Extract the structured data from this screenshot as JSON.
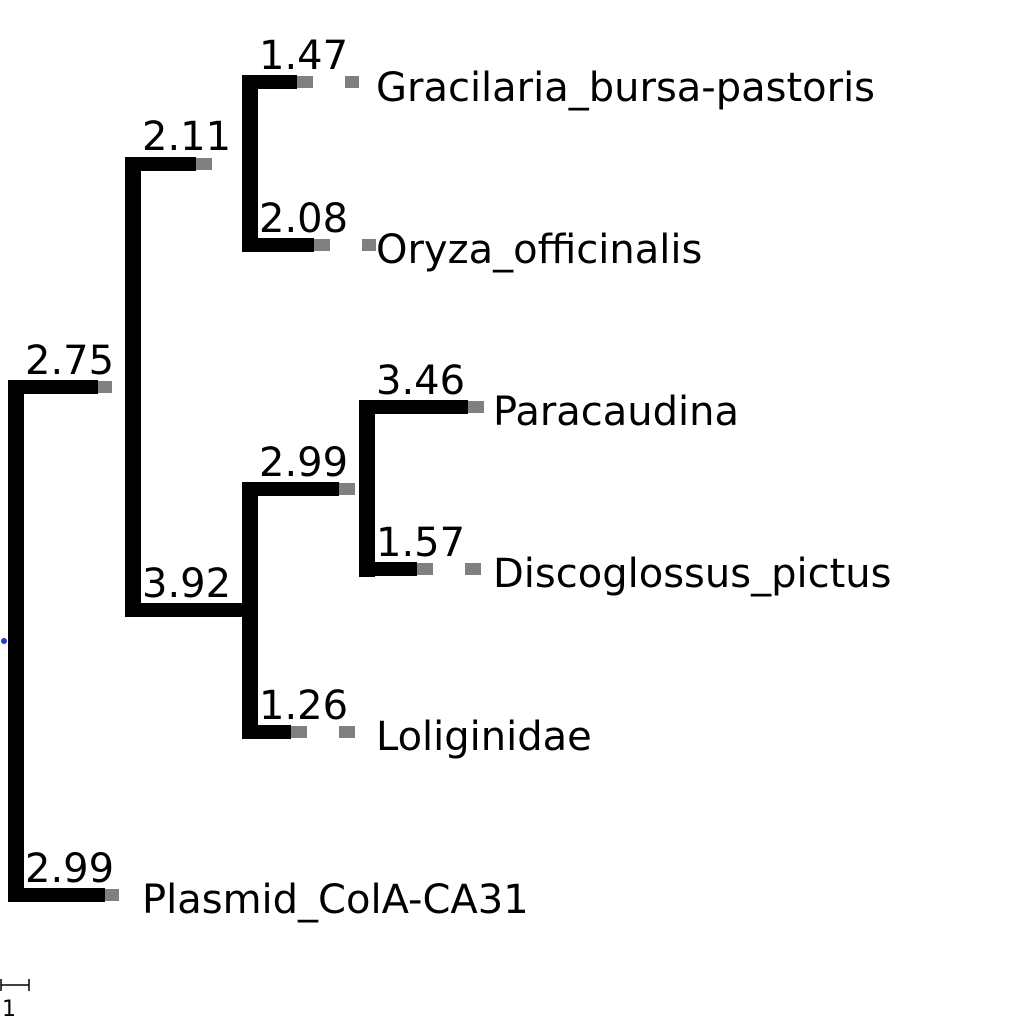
{
  "colors": {
    "background": "#ffffff",
    "branch": "#000000",
    "leader": "#808080",
    "root_marker": "#1f3fbf",
    "text": "#000000"
  },
  "scale_bar": {
    "label": "1"
  },
  "branch_labels": [
    {
      "id": "gracilaria",
      "value": "1.47"
    },
    {
      "id": "cladeA",
      "value": "2.11"
    },
    {
      "id": "oryza",
      "value": "2.08"
    },
    {
      "id": "ingroup",
      "value": "2.75"
    },
    {
      "id": "paracaudina",
      "value": "3.46"
    },
    {
      "id": "cladeD",
      "value": "2.99"
    },
    {
      "id": "discoglossus",
      "value": "1.57"
    },
    {
      "id": "cladeB",
      "value": "3.92"
    },
    {
      "id": "loliginidae",
      "value": "1.26"
    },
    {
      "id": "plasmid",
      "value": "2.99"
    }
  ],
  "leaves": [
    {
      "id": "gracilaria",
      "name": "Gracilaria_bursa-pastoris"
    },
    {
      "id": "oryza",
      "name": "Oryza_officinalis"
    },
    {
      "id": "paracaudina",
      "name": "Paracaudina"
    },
    {
      "id": "discoglossus",
      "name": "Discoglossus_pictus"
    },
    {
      "id": "loliginidae",
      "name": "Loliginidae"
    },
    {
      "id": "plasmid",
      "name": "Plasmid_ColA-CA31"
    }
  ]
}
